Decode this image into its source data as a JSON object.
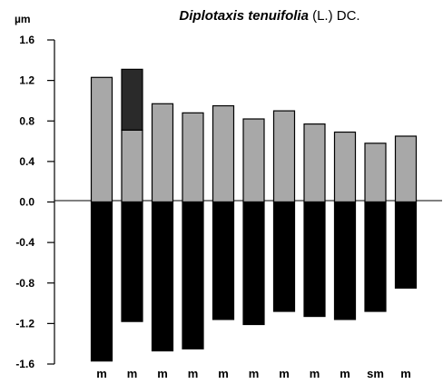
{
  "chart_data": {
    "type": "bar",
    "title_species": "Diplotaxis tenuifolia",
    "title_author": " (L.) DC.",
    "unit_label": "µm",
    "ylim": [
      -1.6,
      1.6
    ],
    "y_ticks": [
      "1.6",
      "1.2",
      "0.8",
      "0.4",
      "0.0",
      "-0.4",
      "-0.8",
      "-1.2",
      "-1.6"
    ],
    "y_tick_values": [
      1.6,
      1.2,
      0.8,
      0.4,
      0.0,
      -0.4,
      -0.8,
      -1.2,
      -1.6
    ],
    "categories": [
      "m",
      "m",
      "m",
      "m",
      "m",
      "m",
      "m",
      "m",
      "m",
      "sm",
      "m"
    ],
    "series": [
      {
        "values": [
          1.23,
          0.71,
          0.97,
          0.88,
          0.95,
          0.82,
          0.9,
          0.77,
          0.69,
          0.58,
          0.65
        ],
        "color": "#a8a8a8"
      },
      {
        "values": [
          0,
          0.6,
          0,
          0,
          0,
          0,
          0,
          0,
          0,
          0,
          0
        ],
        "color": "#2a2a2a"
      },
      {
        "values": [
          -1.57,
          -1.18,
          -1.47,
          -1.45,
          -1.16,
          -1.21,
          -1.08,
          -1.13,
          -1.16,
          -1.08,
          -0.85
        ],
        "color": "#000000"
      }
    ]
  }
}
